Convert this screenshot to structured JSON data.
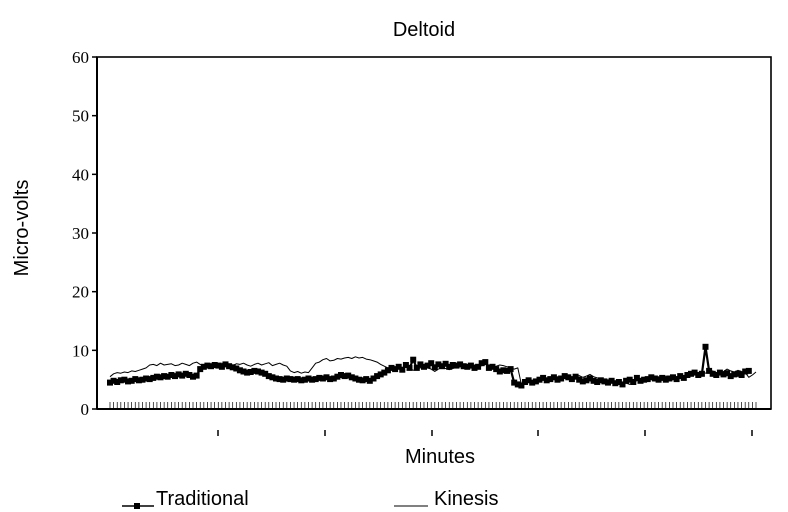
{
  "chart_data": {
    "type": "line",
    "title": "Deltoid",
    "xlabel": "Minutes",
    "ylabel": "Micro-volts",
    "ylim": [
      0,
      60
    ],
    "yticks": [
      "0",
      "10",
      "20",
      "30",
      "40",
      "50",
      "60"
    ],
    "grid": false,
    "legend_position": "bottom",
    "series": [
      {
        "name": "Traditional",
        "marker": "square",
        "color": "#000000",
        "values": [
          4.5,
          4.8,
          4.6,
          4.9,
          5.0,
          4.7,
          4.8,
          5.1,
          4.9,
          5.0,
          5.2,
          5.1,
          5.3,
          5.5,
          5.4,
          5.6,
          5.5,
          5.8,
          5.6,
          5.9,
          5.7,
          6.0,
          5.8,
          5.5,
          5.7,
          6.8,
          7.2,
          7.4,
          7.3,
          7.5,
          7.4,
          7.2,
          7.6,
          7.3,
          7.1,
          6.9,
          6.6,
          6.4,
          6.2,
          6.3,
          6.5,
          6.4,
          6.2,
          6.0,
          5.6,
          5.4,
          5.2,
          5.1,
          5.0,
          5.2,
          5.1,
          5.0,
          5.1,
          4.9,
          5.0,
          5.2,
          5.0,
          5.1,
          5.3,
          5.2,
          5.4,
          5.1,
          5.2,
          5.5,
          5.8,
          5.6,
          5.7,
          5.4,
          5.2,
          5.0,
          4.9,
          5.1,
          4.8,
          5.2,
          5.6,
          5.9,
          6.2,
          6.6,
          7.0,
          6.8,
          7.2,
          6.7,
          7.5,
          7.0,
          8.4,
          7.0,
          7.6,
          7.2,
          7.4,
          7.8,
          7.1,
          7.6,
          7.3,
          7.7,
          7.2,
          7.5,
          7.4,
          7.6,
          7.3,
          7.2,
          7.4,
          7.0,
          7.2,
          7.8,
          8.0,
          7.0,
          7.2,
          6.8,
          6.4,
          6.6,
          6.5,
          6.8,
          4.5,
          4.2,
          4.0,
          4.6,
          4.9,
          4.5,
          4.7,
          5.0,
          5.3,
          4.9,
          5.1,
          5.4,
          5.0,
          5.2,
          5.6,
          5.4,
          5.1,
          5.5,
          5.0,
          4.7,
          4.9,
          5.2,
          4.8,
          4.6,
          4.9,
          4.7,
          4.5,
          4.8,
          4.4,
          4.6,
          4.2,
          4.8,
          5.0,
          4.6,
          5.3,
          4.8,
          5.0,
          5.1,
          5.4,
          5.2,
          5.0,
          5.3,
          5.0,
          5.2,
          5.4,
          5.1,
          5.6,
          5.3,
          5.8,
          6.0,
          6.2,
          5.8,
          6.0,
          10.6,
          6.5,
          6.0,
          5.8,
          6.2,
          5.9,
          6.1,
          5.6,
          5.9,
          6.0,
          5.8,
          6.4,
          6.5
        ]
      },
      {
        "name": "Kinesis",
        "marker": "none",
        "color": "#000000",
        "values": [
          5.5,
          6.0,
          6.2,
          6.1,
          6.3,
          6.2,
          6.5,
          6.4,
          6.6,
          6.8,
          7.0,
          7.5,
          7.6,
          7.4,
          7.8,
          7.5,
          7.6,
          7.7,
          7.4,
          7.5,
          7.8,
          7.6,
          7.4,
          7.8,
          8.0,
          7.6,
          7.3,
          7.0,
          7.2,
          7.4,
          7.6,
          7.8,
          7.5,
          7.2,
          7.4,
          7.7,
          7.6,
          7.8,
          7.5,
          7.3,
          7.6,
          7.8,
          7.5,
          7.7,
          7.9,
          7.4,
          7.6,
          7.8,
          7.5,
          7.3,
          6.5,
          6.2,
          6.4,
          6.1,
          6.3,
          6.2,
          7.0,
          7.8,
          8.0,
          8.4,
          8.6,
          8.2,
          8.3,
          8.6,
          8.5,
          8.7,
          8.8,
          8.6,
          8.9,
          8.7,
          8.8,
          8.5,
          8.4,
          8.2,
          8.0,
          7.6,
          7.3,
          7.0,
          7.2,
          6.8,
          7.0,
          6.9,
          7.2,
          7.0,
          6.6,
          6.8,
          7.0,
          7.2,
          7.0,
          6.8,
          6.4,
          6.8,
          7.1,
          6.9,
          6.7,
          6.9,
          7.1,
          7.3,
          7.0,
          7.2,
          7.4,
          7.5,
          7.2,
          7.4,
          7.6,
          7.5,
          7.1,
          7.3,
          7.5,
          7.4,
          7.2,
          7.0,
          6.8,
          7.0,
          4.2,
          4.4,
          4.6,
          4.8,
          4.9,
          5.1,
          5.0,
          5.3,
          5.2,
          5.4,
          5.5,
          5.3,
          5.6,
          5.4,
          5.2,
          5.5,
          5.7,
          5.4,
          5.6,
          5.9,
          5.5,
          5.3,
          5.0,
          4.8,
          5.0,
          4.7,
          4.6,
          4.3,
          4.5,
          4.4,
          4.2,
          4.6,
          4.8,
          5.0,
          5.3,
          5.1,
          5.4,
          5.2,
          5.5,
          5.3,
          5.6,
          5.4,
          5.2,
          5.5,
          5.7,
          5.6,
          5.9,
          5.8,
          6.0,
          6.2,
          6.4,
          6.1,
          6.3,
          6.5,
          6.2,
          6.0,
          6.4,
          6.8,
          6.5,
          6.3,
          6.6,
          6.4,
          6.2,
          5.4,
          5.8,
          6.3
        ]
      }
    ]
  }
}
